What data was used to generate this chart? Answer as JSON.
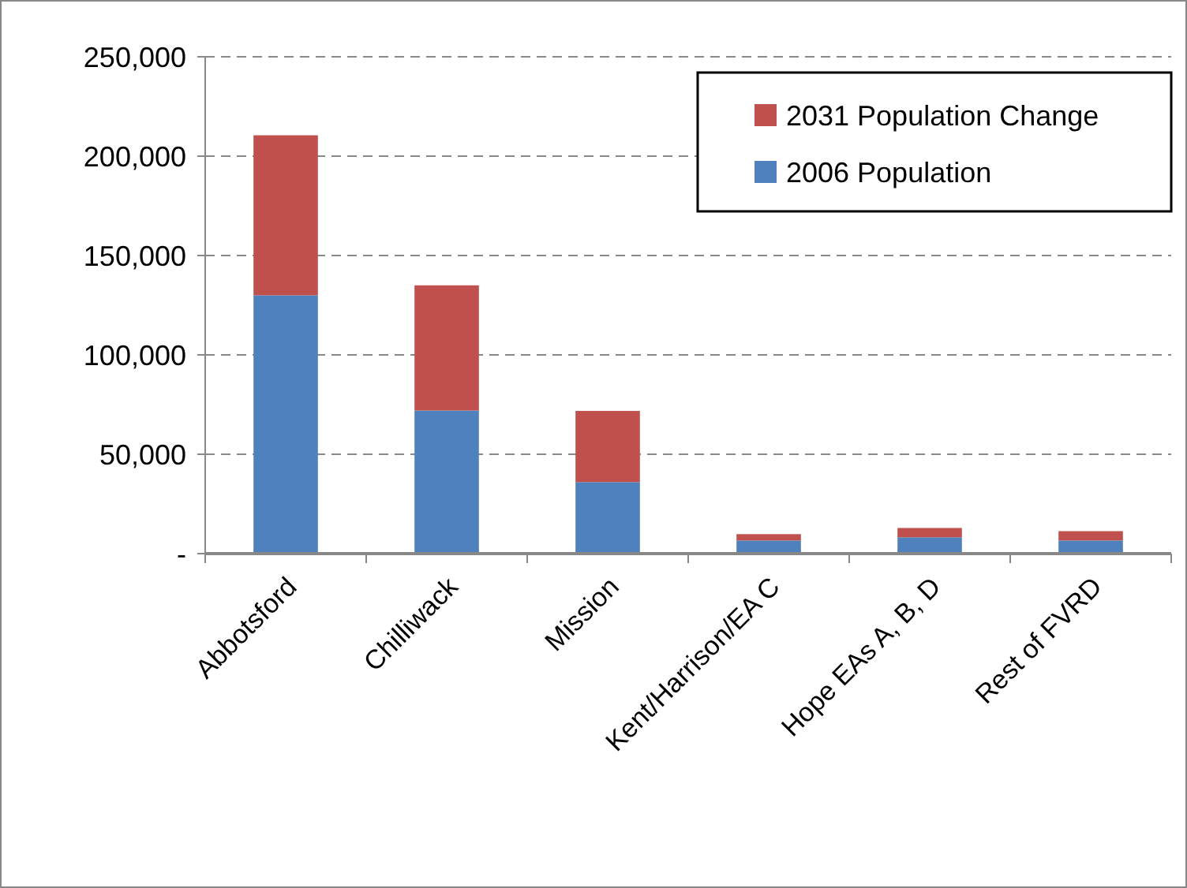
{
  "chart_data": {
    "type": "bar",
    "stacked": true,
    "categories": [
      "Abbotsford",
      "Chilliwack",
      "Mission",
      "Kent/Harrison/EA C",
      "Hope EAs A, B, D",
      "Rest of FVRD"
    ],
    "series": [
      {
        "name": "2006 Population",
        "color": "#4f81bd",
        "values": [
          130000,
          72000,
          36000,
          6600,
          8200,
          6600
        ]
      },
      {
        "name": "2031 Population Change",
        "color": "#c0504d",
        "values": [
          80500,
          63000,
          35800,
          3200,
          4700,
          4700
        ]
      }
    ],
    "ylim": [
      0,
      250000
    ],
    "yticks": [
      {
        "value": 0,
        "label": "-"
      },
      {
        "value": 50000,
        "label": "50,000"
      },
      {
        "value": 100000,
        "label": "100,000"
      },
      {
        "value": 150000,
        "label": "150,000"
      },
      {
        "value": 200000,
        "label": "200,000"
      },
      {
        "value": 250000,
        "label": "250,000"
      }
    ],
    "grid": "y",
    "legend": "top right"
  }
}
